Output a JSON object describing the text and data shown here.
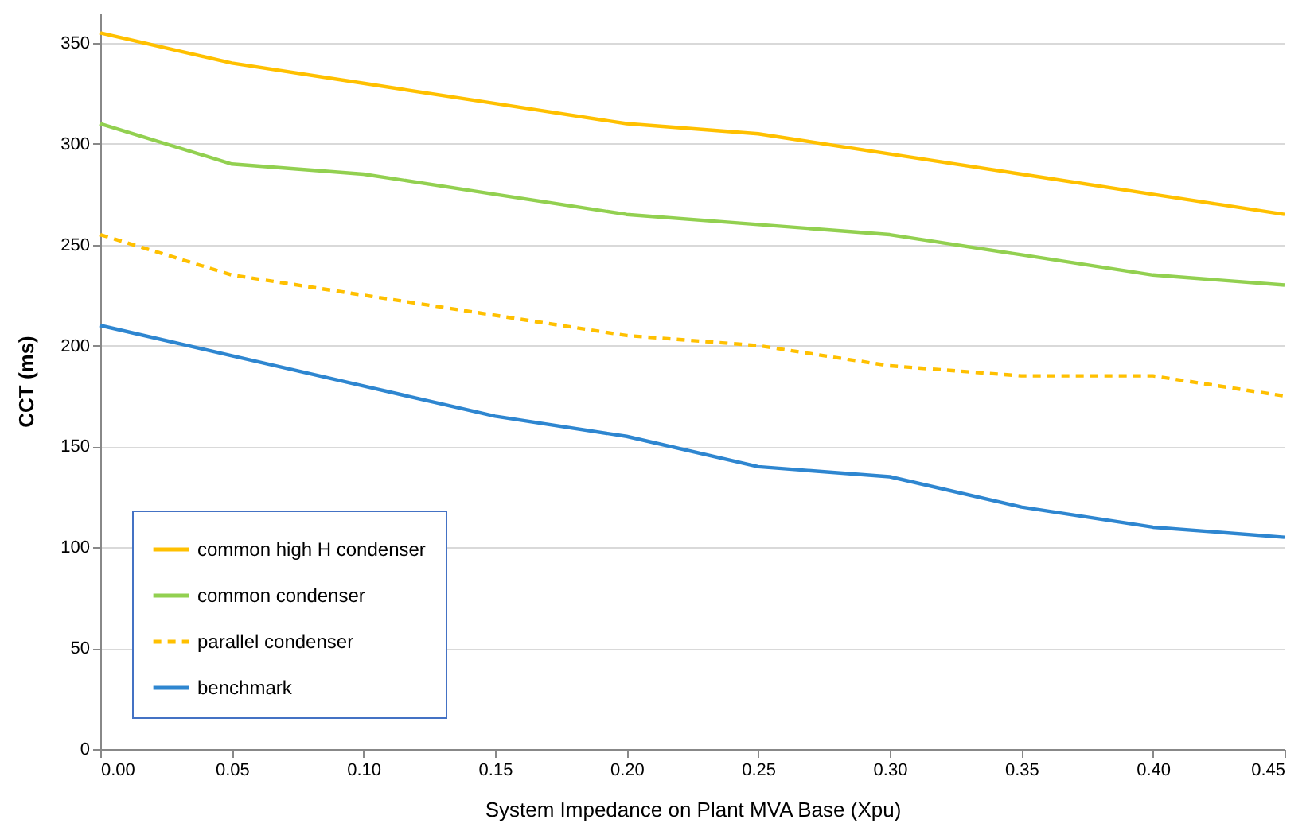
{
  "chart_data": {
    "type": "line",
    "xlabel": "System Impedance on Plant MVA Base (Xpu)",
    "ylabel": "CCT (ms)",
    "x": [
      0,
      0.05,
      0.1,
      0.15,
      0.2,
      0.25,
      0.3,
      0.35,
      0.4,
      0.45
    ],
    "xlim": [
      0,
      0.45
    ],
    "xticks": [
      {
        "value": 0,
        "label": "0.00"
      },
      {
        "value": 0.05,
        "label": "0.05"
      },
      {
        "value": 0.1,
        "label": "0.10"
      },
      {
        "value": 0.15,
        "label": "0.15"
      },
      {
        "value": 0.2,
        "label": "0.20"
      },
      {
        "value": 0.25,
        "label": "0.25"
      },
      {
        "value": 0.3,
        "label": "0.30"
      },
      {
        "value": 0.35,
        "label": "0.35"
      },
      {
        "value": 0.4,
        "label": "0.40"
      },
      {
        "value": 0.45,
        "label": "0.45"
      }
    ],
    "ylim": [
      0,
      365
    ],
    "yticks": [
      0,
      50,
      100,
      150,
      200,
      250,
      300,
      350
    ],
    "grid": "y",
    "legend": "bottom left",
    "marker": "none",
    "series": [
      {
        "name": "common high H condenser",
        "color": "#ffc000",
        "line_style": "solid",
        "values": [
          355,
          340,
          330,
          320,
          310,
          305,
          295,
          285,
          275,
          265
        ]
      },
      {
        "name": "common condenser",
        "color": "#92d050",
        "line_style": "solid",
        "values": [
          310,
          290,
          285,
          275,
          265,
          260,
          255,
          245,
          235,
          230
        ]
      },
      {
        "name": "parallel condenser",
        "color": "#ffc000",
        "line_style": "dashed",
        "values": [
          255,
          235,
          225,
          215,
          205,
          200,
          190,
          185,
          185,
          175
        ]
      },
      {
        "name": "benchmark",
        "color": "#2e86d0",
        "line_style": "solid",
        "values": [
          210,
          195,
          180,
          165,
          155,
          140,
          135,
          120,
          110,
          105
        ]
      }
    ]
  }
}
